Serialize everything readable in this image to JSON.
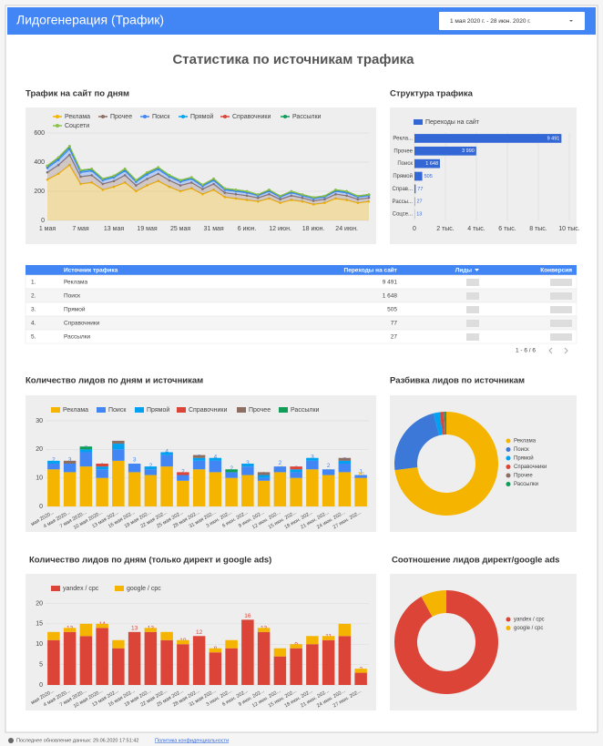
{
  "header": {
    "title": "Лидогенерация  (Трафик)",
    "date_range": "1 мая 2020 г. - 28 июн. 2020 г.",
    "page_title": "Статистика по источникам трафика"
  },
  "chart_data": [
    {
      "type": "line",
      "stacked": true,
      "title": "Трафик на сайт по дням",
      "categories": [
        "1 мая",
        null,
        null,
        "7 мая",
        null,
        null,
        "13 мая",
        null,
        null,
        "19 мая",
        null,
        null,
        "25 мая",
        null,
        null,
        "31 мая",
        null,
        null,
        "6 июн.",
        null,
        null,
        "12 июн.",
        null,
        null,
        "18 июн.",
        null,
        null,
        "24 июн.",
        null,
        null
      ],
      "ylim": [
        0,
        600
      ],
      "yticks": [
        0,
        200,
        400,
        600
      ],
      "grid": true,
      "series": [
        {
          "name": "Реклама",
          "color": "#f4b400",
          "values": [
            280,
            320,
            380,
            250,
            260,
            210,
            230,
            260,
            200,
            240,
            270,
            230,
            200,
            220,
            180,
            210,
            160,
            150,
            140,
            130,
            150,
            120,
            140,
            130,
            110,
            120,
            150,
            140,
            120,
            130
          ]
        },
        {
          "name": "Прочее",
          "color": "#8d6e63",
          "values": [
            50,
            60,
            70,
            50,
            50,
            40,
            40,
            50,
            40,
            45,
            50,
            45,
            40,
            40,
            35,
            40,
            30,
            30,
            30,
            25,
            30,
            25,
            30,
            25,
            25,
            25,
            30,
            30,
            25,
            25
          ]
        },
        {
          "name": "Поиск",
          "color": "#4285f4",
          "values": [
            30,
            35,
            40,
            30,
            30,
            25,
            25,
            30,
            25,
            30,
            30,
            25,
            25,
            25,
            20,
            25,
            20,
            20,
            20,
            15,
            20,
            15,
            20,
            15,
            15,
            15,
            20,
            20,
            15,
            15
          ]
        },
        {
          "name": "Прямой",
          "color": "#00a1f1",
          "values": [
            10,
            12,
            14,
            10,
            10,
            8,
            8,
            10,
            8,
            10,
            10,
            8,
            8,
            8,
            7,
            8,
            7,
            7,
            7,
            6,
            7,
            6,
            7,
            6,
            6,
            6,
            7,
            7,
            6,
            6
          ]
        },
        {
          "name": "Справочники",
          "color": "#db4437",
          "values": [
            3,
            3,
            4,
            3,
            3,
            2,
            2,
            3,
            2,
            3,
            3,
            2,
            2,
            2,
            2,
            2,
            2,
            2,
            2,
            1,
            2,
            1,
            2,
            1,
            1,
            1,
            2,
            2,
            1,
            1
          ]
        },
        {
          "name": "Рассылки",
          "color": "#0f9d58",
          "values": [
            2,
            2,
            2,
            1,
            1,
            1,
            1,
            1,
            1,
            1,
            1,
            1,
            1,
            1,
            1,
            1,
            1,
            1,
            1,
            1,
            1,
            1,
            1,
            1,
            1,
            1,
            1,
            1,
            1,
            1
          ]
        },
        {
          "name": "Соцсети",
          "color": "#8bc34a",
          "values": [
            1,
            1,
            1,
            1,
            1,
            0,
            0,
            1,
            0,
            1,
            1,
            0,
            0,
            0,
            0,
            1,
            0,
            0,
            0,
            0,
            1,
            0,
            0,
            0,
            0,
            0,
            1,
            0,
            0,
            0
          ]
        }
      ]
    },
    {
      "type": "bar",
      "orientation": "horizontal",
      "title": "Структура трафика",
      "categories": [
        "Рекла...",
        "Прочее",
        "Поиск",
        "Прямой",
        "Справ...",
        "Рассы...",
        "Соцсе..."
      ],
      "series": [
        {
          "name": "Переходы на сайт",
          "color": "#3367d6",
          "values": [
            9491,
            3990,
            1648,
            505,
            77,
            27,
            13
          ],
          "value_labels": [
            "9 491",
            "3 990",
            "1 648",
            "505",
            "77",
            "27",
            "13"
          ]
        }
      ],
      "xlim": [
        0,
        10000
      ],
      "xticks": [
        0,
        {
          "value": 2000,
          "label": "2 тыс."
        },
        {
          "value": 4000,
          "label": "4 тыс."
        },
        {
          "value": 6000,
          "label": "6 тыс."
        },
        {
          "value": 8000,
          "label": "8 тыс."
        },
        {
          "value": 10000,
          "label": "10 тыс."
        }
      ],
      "grid": true
    },
    {
      "type": "bar",
      "stacked": true,
      "title": "Количество лидов по дням и источникам",
      "categories": [
        "мая 2020...",
        "4 мая 2020...",
        "7 мая 2020...",
        "10 мая 2020...",
        "13 мая 202...",
        "16 мая 202...",
        "19 мая 202...",
        "22 мая 202...",
        "25 мая 202...",
        "28 мая 202...",
        "31 мая 202...",
        "3 июн. 202...",
        "6 июн. 202...",
        "9 июн. 202...",
        "12 июн. 202...",
        "15 июн. 202...",
        "18 июн. 202...",
        "21 июн. 202...",
        "24 июн. 202...",
        "27 июн. 202..."
      ],
      "ylim": [
        0,
        30
      ],
      "yticks": [
        0,
        10,
        20,
        30
      ],
      "grid": true,
      "labeled_series": [
        "Реклама",
        "Поиск"
      ],
      "series": [
        {
          "name": "Реклама",
          "color": "#f4b400",
          "values": [
            13,
            12,
            14,
            10,
            16,
            12,
            11,
            14,
            9,
            13,
            12,
            10,
            11,
            9,
            12,
            10,
            13,
            11,
            12,
            10
          ]
        },
        {
          "name": "Поиск",
          "color": "#4285f4",
          "values": [
            2,
            3,
            5,
            3,
            4,
            3,
            2,
            4,
            2,
            3,
            4,
            2,
            3,
            1,
            2,
            2,
            3,
            2,
            3,
            1
          ]
        },
        {
          "name": "Прямой",
          "color": "#00a1f1",
          "values": [
            1,
            0,
            1,
            1,
            2,
            0,
            1,
            1,
            0,
            1,
            1,
            0,
            1,
            1,
            0,
            1,
            1,
            0,
            1,
            0
          ]
        },
        {
          "name": "Справочники",
          "color": "#db4437",
          "values": [
            0,
            0,
            0,
            1,
            0,
            0,
            0,
            0,
            1,
            0,
            0,
            0,
            0,
            0,
            0,
            1,
            0,
            0,
            0,
            0
          ]
        },
        {
          "name": "Прочее",
          "color": "#8d6e63",
          "values": [
            0,
            1,
            0,
            0,
            1,
            0,
            0,
            0,
            0,
            1,
            0,
            0,
            0,
            1,
            0,
            0,
            0,
            0,
            1,
            0
          ]
        },
        {
          "name": "Рассылки",
          "color": "#0f9d58",
          "values": [
            0,
            0,
            1,
            0,
            0,
            0,
            0,
            0,
            0,
            0,
            0,
            1,
            0,
            0,
            0,
            0,
            0,
            0,
            0,
            0
          ]
        }
      ]
    },
    {
      "type": "pie",
      "donut": true,
      "title": "Разбивка лидов по источникам",
      "categories": [
        "Реклама",
        "Поиск",
        "Прямой",
        "Справочники",
        "Прочее",
        "Рассылки"
      ],
      "values": [
        73,
        23,
        2,
        1,
        0.5,
        0.5
      ],
      "colors": [
        "#f4b400",
        "#3c78d8",
        "#00a1f1",
        "#db4437",
        "#8d6e63",
        "#0f9d58"
      ]
    },
    {
      "type": "bar",
      "stacked": true,
      "title": "Количество лидов по дням (только директ и google ads)",
      "categories": [
        "мая 2020...",
        "4 мая 2020...",
        "7 мая 2020...",
        "10 мая 2020...",
        "13 мая 202...",
        "16 мая 202...",
        "19 мая 202...",
        "22 мая 202...",
        "25 мая 202...",
        "28 мая 202...",
        "31 мая 202...",
        "3 июн. 202...",
        "6 июн. 202...",
        "9 июн. 202...",
        "12 июн. 202...",
        "15 июн. 202...",
        "18 июн. 202...",
        "21 июн. 202...",
        "24 июн. 202...",
        "27 июн. 202..."
      ],
      "ylim": [
        0,
        21
      ],
      "yticks": [
        0,
        5,
        10,
        15,
        20
      ],
      "grid": true,
      "labeled_series": [
        "yandex / cpc"
      ],
      "series": [
        {
          "name": "yandex / cpc",
          "color": "#db4437",
          "values": [
            11,
            13,
            12,
            14,
            9,
            13,
            13,
            11,
            10,
            12,
            8,
            9,
            16,
            13,
            7,
            9,
            10,
            11,
            12,
            3
          ]
        },
        {
          "name": "google / cpc",
          "color": "#f4b400",
          "values": [
            2,
            1,
            3,
            1,
            2,
            0,
            1,
            2,
            1,
            0,
            1,
            2,
            0,
            1,
            2,
            1,
            2,
            1,
            3,
            1
          ]
        }
      ]
    },
    {
      "type": "pie",
      "donut": true,
      "title": "Соотношение лидов директ/google ads",
      "categories": [
        "yandex / cpc",
        "google / cpc"
      ],
      "values": [
        92,
        8
      ],
      "colors": [
        "#db4437",
        "#f4b400"
      ]
    }
  ],
  "table": {
    "headers": [
      "Источник трафика",
      "Переходы на сайт",
      "Лиды",
      "Конверсия"
    ],
    "rows": [
      [
        "1.",
        "Реклама",
        "9 491"
      ],
      [
        "2.",
        "Поиск",
        "1 648"
      ],
      [
        "3.",
        "Прямой",
        "505"
      ],
      [
        "4.",
        "Справочники",
        "77"
      ],
      [
        "5.",
        "Рассылки",
        "27"
      ]
    ],
    "pagination": "1 - 6 / 6"
  },
  "footer": {
    "updated": "Последнее обновление данных: 29.06.2020 17:51:42",
    "privacy": "Политика конфиденциальности"
  }
}
